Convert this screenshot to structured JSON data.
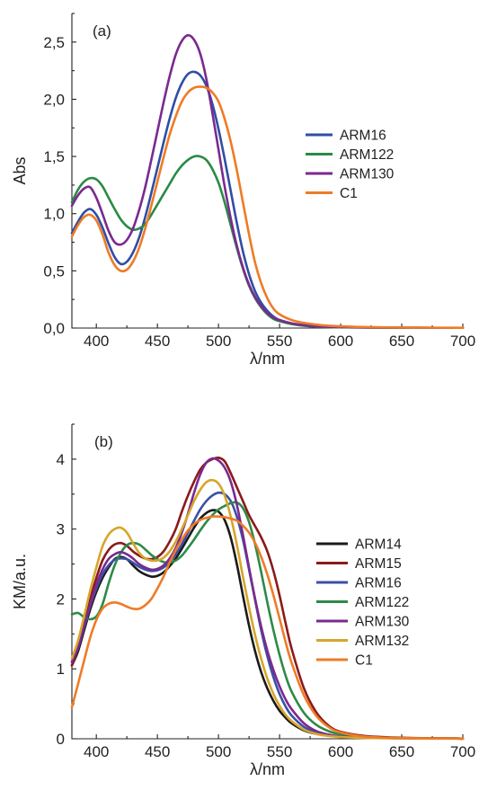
{
  "chart_data": [
    {
      "type": "line",
      "panel_label": "(a)",
      "xlabel": "λ/nm",
      "ylabel": "Abs",
      "xlim": [
        380,
        700
      ],
      "ylim": [
        0,
        2.75
      ],
      "xticks": [
        400,
        450,
        500,
        550,
        600,
        650,
        700
      ],
      "yticks": [
        0,
        0.5,
        1.0,
        1.5,
        2.0,
        2.5
      ],
      "xtick_labels": [
        "400",
        "450",
        "500",
        "550",
        "600",
        "650",
        "700"
      ],
      "ytick_labels": [
        "0,0",
        "0,5",
        "1,0",
        "1,5",
        "2,0",
        "2,5"
      ],
      "legend_position": "right",
      "x": [
        380,
        385,
        390,
        395,
        400,
        405,
        410,
        415,
        420,
        425,
        430,
        435,
        440,
        445,
        450,
        455,
        460,
        465,
        470,
        475,
        480,
        485,
        490,
        495,
        500,
        505,
        510,
        515,
        520,
        525,
        530,
        535,
        540,
        545,
        550,
        560,
        570,
        580,
        590,
        600,
        620,
        650,
        680,
        700
      ],
      "series": [
        {
          "name": "ARM16",
          "color": "#2f4ea4",
          "values": [
            0.83,
            0.93,
            1.01,
            1.04,
            0.99,
            0.88,
            0.74,
            0.62,
            0.56,
            0.58,
            0.66,
            0.79,
            0.97,
            1.18,
            1.4,
            1.62,
            1.83,
            2.01,
            2.14,
            2.22,
            2.24,
            2.21,
            2.12,
            1.96,
            1.74,
            1.48,
            1.2,
            0.92,
            0.67,
            0.47,
            0.32,
            0.22,
            0.15,
            0.1,
            0.07,
            0.04,
            0.025,
            0.015,
            0.01,
            0.008,
            0.005,
            0.003,
            0.002,
            0.002
          ]
        },
        {
          "name": "ARM122",
          "color": "#2a8a45",
          "values": [
            1.1,
            1.21,
            1.28,
            1.31,
            1.3,
            1.24,
            1.14,
            1.04,
            0.95,
            0.89,
            0.86,
            0.87,
            0.91,
            0.99,
            1.08,
            1.17,
            1.26,
            1.35,
            1.42,
            1.47,
            1.5,
            1.5,
            1.47,
            1.39,
            1.27,
            1.1,
            0.9,
            0.7,
            0.52,
            0.37,
            0.26,
            0.18,
            0.12,
            0.08,
            0.06,
            0.035,
            0.02,
            0.012,
            0.008,
            0.006,
            0.004,
            0.003,
            0.002,
            0.002
          ]
        },
        {
          "name": "ARM130",
          "color": "#7a2a8e",
          "values": [
            1.07,
            1.16,
            1.22,
            1.23,
            1.14,
            1.0,
            0.85,
            0.75,
            0.73,
            0.77,
            0.87,
            1.03,
            1.23,
            1.47,
            1.72,
            1.97,
            2.2,
            2.39,
            2.51,
            2.56,
            2.52,
            2.4,
            2.18,
            1.88,
            1.56,
            1.24,
            0.96,
            0.72,
            0.53,
            0.38,
            0.27,
            0.19,
            0.13,
            0.09,
            0.07,
            0.04,
            0.025,
            0.015,
            0.01,
            0.008,
            0.005,
            0.003,
            0.002,
            0.002
          ]
        },
        {
          "name": "C1",
          "color": "#ef7b26",
          "values": [
            0.8,
            0.9,
            0.97,
            0.99,
            0.94,
            0.82,
            0.66,
            0.55,
            0.5,
            0.51,
            0.58,
            0.7,
            0.87,
            1.07,
            1.28,
            1.49,
            1.69,
            1.85,
            1.98,
            2.06,
            2.1,
            2.11,
            2.1,
            2.06,
            1.98,
            1.83,
            1.63,
            1.38,
            1.1,
            0.82,
            0.57,
            0.39,
            0.26,
            0.17,
            0.12,
            0.07,
            0.045,
            0.03,
            0.02,
            0.015,
            0.008,
            0.004,
            0.003,
            0.002
          ]
        }
      ]
    },
    {
      "type": "line",
      "panel_label": "(b)",
      "xlabel": "λ/nm",
      "ylabel": "KM/a.u.",
      "xlim": [
        380,
        700
      ],
      "ylim": [
        0,
        4.5
      ],
      "xticks": [
        400,
        450,
        500,
        550,
        600,
        650,
        700
      ],
      "yticks": [
        0,
        1,
        2,
        3,
        4
      ],
      "xtick_labels": [
        "400",
        "450",
        "500",
        "550",
        "600",
        "650",
        "700"
      ],
      "ytick_labels": [
        "0",
        "1",
        "2",
        "3",
        "4"
      ],
      "legend_position": "right",
      "x": [
        380,
        385,
        390,
        395,
        400,
        405,
        410,
        415,
        420,
        425,
        430,
        435,
        440,
        445,
        450,
        455,
        460,
        465,
        470,
        475,
        480,
        485,
        490,
        495,
        500,
        505,
        510,
        515,
        520,
        525,
        530,
        535,
        540,
        545,
        550,
        555,
        560,
        570,
        580,
        590,
        600,
        620,
        650,
        680,
        700
      ],
      "series": [
        {
          "name": "ARM14",
          "color": "#1a1a1a",
          "values": [
            1.05,
            1.25,
            1.55,
            1.85,
            2.1,
            2.3,
            2.45,
            2.57,
            2.6,
            2.57,
            2.48,
            2.4,
            2.35,
            2.32,
            2.33,
            2.38,
            2.47,
            2.58,
            2.72,
            2.87,
            3.02,
            3.15,
            3.23,
            3.27,
            3.25,
            3.13,
            2.88,
            2.5,
            2.05,
            1.62,
            1.25,
            0.95,
            0.72,
            0.54,
            0.4,
            0.3,
            0.22,
            0.12,
            0.07,
            0.045,
            0.03,
            0.02,
            0.01,
            0.005,
            0.003
          ]
        },
        {
          "name": "ARM15",
          "color": "#8b1a1a",
          "values": [
            1.05,
            1.3,
            1.65,
            2.0,
            2.3,
            2.55,
            2.7,
            2.78,
            2.8,
            2.76,
            2.68,
            2.62,
            2.58,
            2.57,
            2.6,
            2.68,
            2.82,
            3.0,
            3.25,
            3.48,
            3.68,
            3.85,
            3.95,
            4.0,
            4.02,
            3.97,
            3.8,
            3.6,
            3.4,
            3.2,
            3.04,
            2.88,
            2.68,
            2.4,
            2.05,
            1.65,
            1.28,
            0.72,
            0.38,
            0.19,
            0.1,
            0.04,
            0.015,
            0.006,
            0.003
          ]
        },
        {
          "name": "ARM16",
          "color": "#3b4fa8",
          "values": [
            1.1,
            1.3,
            1.6,
            1.9,
            2.15,
            2.35,
            2.48,
            2.56,
            2.58,
            2.57,
            2.52,
            2.46,
            2.42,
            2.4,
            2.41,
            2.45,
            2.53,
            2.64,
            2.78,
            2.95,
            3.12,
            3.28,
            3.4,
            3.48,
            3.52,
            3.5,
            3.4,
            3.18,
            2.85,
            2.42,
            1.98,
            1.55,
            1.18,
            0.88,
            0.64,
            0.46,
            0.33,
            0.17,
            0.09,
            0.05,
            0.03,
            0.015,
            0.008,
            0.004,
            0.003
          ]
        },
        {
          "name": "ARM122",
          "color": "#2d8a48",
          "values": [
            1.78,
            1.8,
            1.74,
            1.71,
            1.75,
            1.92,
            2.22,
            2.48,
            2.66,
            2.77,
            2.8,
            2.78,
            2.71,
            2.63,
            2.57,
            2.53,
            2.52,
            2.55,
            2.62,
            2.73,
            2.85,
            2.98,
            3.1,
            3.2,
            3.28,
            3.33,
            3.37,
            3.38,
            3.3,
            3.1,
            2.78,
            2.38,
            1.95,
            1.55,
            1.2,
            0.9,
            0.67,
            0.37,
            0.2,
            0.11,
            0.06,
            0.025,
            0.01,
            0.005,
            0.003
          ]
        },
        {
          "name": "ARM130",
          "color": "#7a2a8e",
          "values": [
            1.1,
            1.3,
            1.6,
            1.92,
            2.2,
            2.42,
            2.57,
            2.64,
            2.67,
            2.64,
            2.58,
            2.5,
            2.45,
            2.42,
            2.43,
            2.48,
            2.58,
            2.73,
            2.95,
            3.22,
            3.52,
            3.78,
            3.95,
            4.01,
            3.98,
            3.88,
            3.68,
            3.35,
            2.92,
            2.45,
            2.0,
            1.6,
            1.26,
            0.98,
            0.75,
            0.56,
            0.42,
            0.22,
            0.11,
            0.06,
            0.03,
            0.015,
            0.008,
            0.004,
            0.003
          ]
        },
        {
          "name": "ARM132",
          "color": "#d6a62b",
          "values": [
            1.15,
            1.4,
            1.75,
            2.12,
            2.45,
            2.75,
            2.92,
            3.0,
            3.02,
            2.95,
            2.8,
            2.66,
            2.58,
            2.55,
            2.55,
            2.59,
            2.68,
            2.82,
            3.0,
            3.2,
            3.4,
            3.56,
            3.67,
            3.7,
            3.65,
            3.48,
            3.18,
            2.78,
            2.32,
            1.88,
            1.48,
            1.14,
            0.86,
            0.64,
            0.47,
            0.34,
            0.25,
            0.13,
            0.07,
            0.04,
            0.025,
            0.012,
            0.006,
            0.003,
            0.002
          ]
        },
        {
          "name": "C1",
          "color": "#ef7b26",
          "values": [
            0.45,
            0.78,
            1.12,
            1.45,
            1.7,
            1.86,
            1.93,
            1.95,
            1.93,
            1.89,
            1.86,
            1.86,
            1.91,
            2.0,
            2.15,
            2.32,
            2.52,
            2.7,
            2.85,
            2.98,
            3.07,
            3.13,
            3.16,
            3.18,
            3.18,
            3.17,
            3.15,
            3.12,
            3.05,
            2.95,
            2.8,
            2.6,
            2.35,
            2.05,
            1.72,
            1.38,
            1.08,
            0.62,
            0.33,
            0.17,
            0.09,
            0.03,
            0.01,
            0.005,
            0.003
          ]
        }
      ]
    }
  ]
}
